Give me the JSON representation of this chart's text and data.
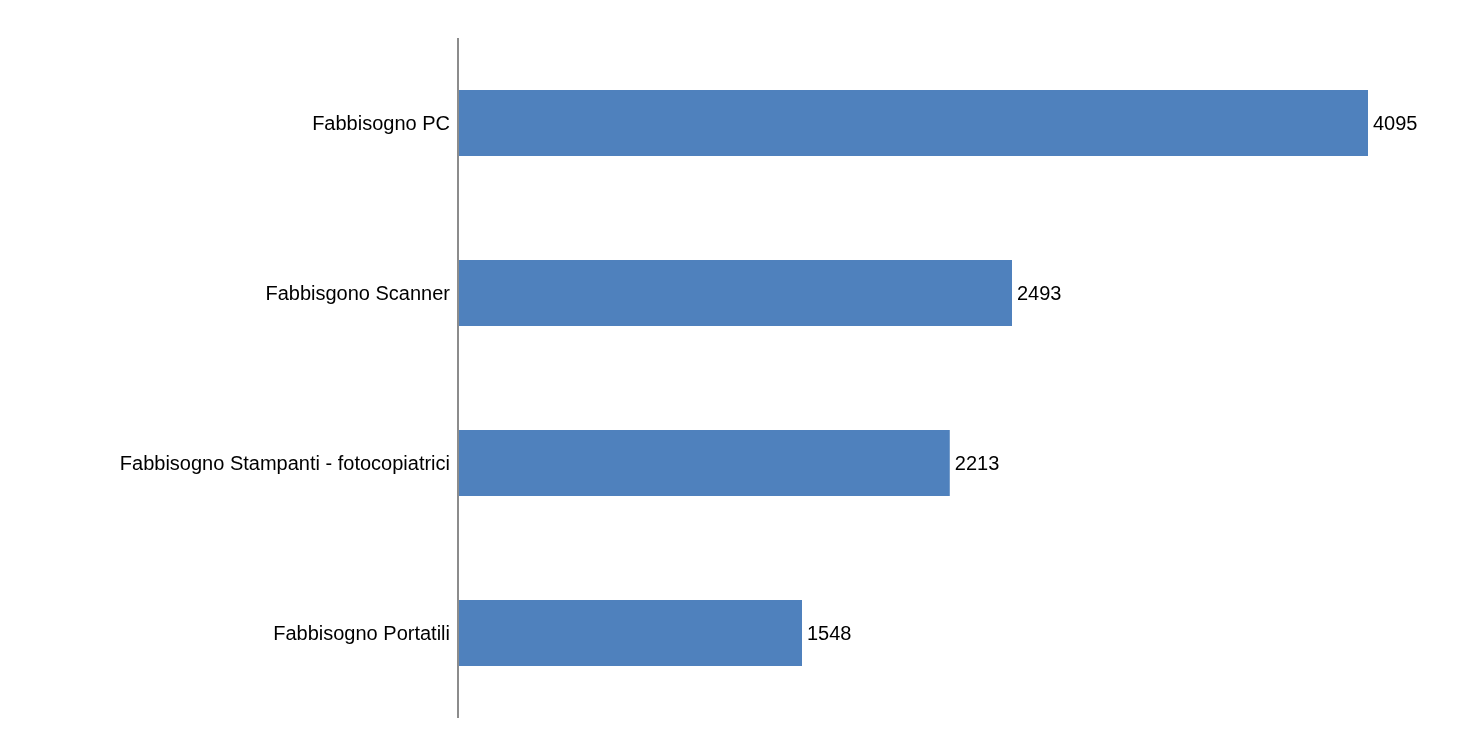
{
  "chart_data": {
    "type": "bar",
    "orientation": "horizontal",
    "categories": [
      "Fabbisogno PC",
      "Fabbisgono Scanner",
      "Fabbisogno Stampanti - fotocopiatrici",
      "Fabbisogno Portatili"
    ],
    "values": [
      4095,
      2493,
      2213,
      1548
    ],
    "color": "#4f81bd",
    "data_labels": true,
    "tick_labels": "y"
  }
}
